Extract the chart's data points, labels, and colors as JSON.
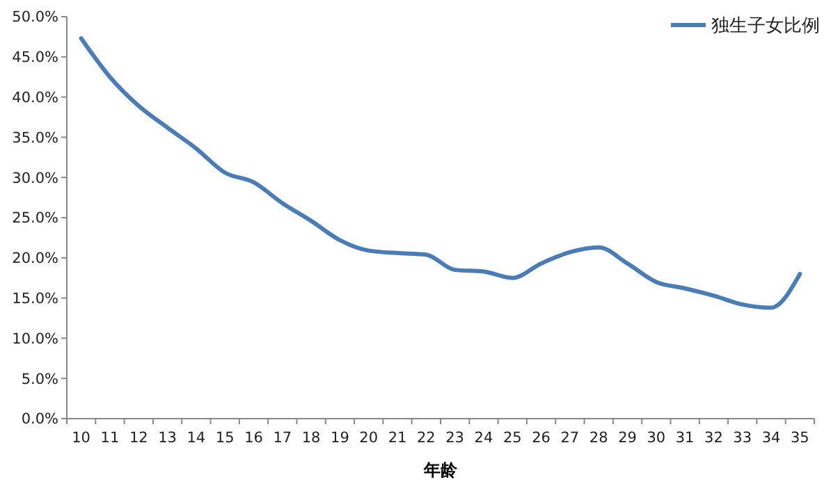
{
  "chart_data": {
    "type": "line",
    "xlabel": "年龄",
    "categories": [
      "10",
      "11",
      "12",
      "13",
      "14",
      "15",
      "16",
      "17",
      "18",
      "19",
      "20",
      "21",
      "22",
      "23",
      "24",
      "25",
      "26",
      "27",
      "28",
      "29",
      "30",
      "31",
      "32",
      "33",
      "34",
      "35"
    ],
    "series": [
      {
        "name": "独生子女比例",
        "color": "#4a7db5",
        "values": [
          47.3,
          42.5,
          38.9,
          36.2,
          33.6,
          30.6,
          29.4,
          26.8,
          24.6,
          22.2,
          20.9,
          20.6,
          20.4,
          18.5,
          18.3,
          17.5,
          19.3,
          20.7,
          21.3,
          19.3,
          17.0,
          16.2,
          15.3,
          14.2,
          13.8,
          18.0
        ]
      }
    ],
    "ylim": [
      0,
      50
    ],
    "yticks": [
      {
        "value": 0,
        "label": "0.0%"
      },
      {
        "value": 5,
        "label": "5.0%"
      },
      {
        "value": 10,
        "label": "10.0%"
      },
      {
        "value": 15,
        "label": "15.0%"
      },
      {
        "value": 20,
        "label": "20.0%"
      },
      {
        "value": 25,
        "label": "25.0%"
      },
      {
        "value": 30,
        "label": "30.0%"
      },
      {
        "value": 35,
        "label": "35.0%"
      },
      {
        "value": 40,
        "label": "40.0%"
      },
      {
        "value": 45,
        "label": "45.0%"
      },
      {
        "value": 50,
        "label": "50.0%"
      }
    ],
    "grid": false,
    "legend": "top right",
    "marker": "none",
    "line_style": "solid"
  }
}
